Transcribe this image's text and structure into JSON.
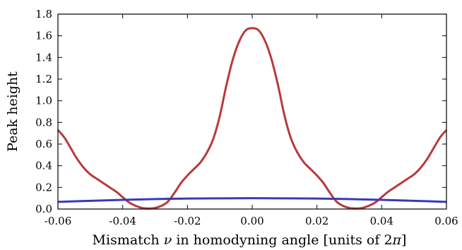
{
  "chart_data": {
    "type": "line",
    "title": "",
    "xlabel": {
      "prefix": "Mismatch ",
      "symbol": "ν",
      "suffix": " in homodyning angle [units of 2",
      "symbol2": "π",
      "end": "]"
    },
    "ylabel": "Peak height",
    "xlim": [
      -0.06,
      0.06
    ],
    "ylim": [
      0.0,
      1.8
    ],
    "xticks": [
      -0.06,
      -0.04,
      -0.02,
      0.0,
      0.02,
      0.04,
      0.06
    ],
    "xtick_labels": [
      "-0.06",
      "-0.04",
      "-0.02",
      "0.00",
      "0.02",
      "0.04",
      "0.06"
    ],
    "yticks": [
      0.0,
      0.2,
      0.4,
      0.6,
      0.8,
      1.0,
      1.2,
      1.4,
      1.6,
      1.8
    ],
    "ytick_labels": [
      "0.0",
      "0.2",
      "0.4",
      "0.6",
      "0.8",
      "1.0",
      "1.2",
      "1.4",
      "1.6",
      "1.8"
    ],
    "grid": false,
    "series": [
      {
        "color": "#b83a3a",
        "x": [
          -0.06,
          -0.058,
          -0.056,
          -0.054,
          -0.052,
          -0.05,
          -0.048,
          -0.046,
          -0.044,
          -0.042,
          -0.04,
          -0.038,
          -0.036,
          -0.034,
          -0.032,
          -0.03,
          -0.028,
          -0.026,
          -0.024,
          -0.022,
          -0.02,
          -0.018,
          -0.016,
          -0.014,
          -0.012,
          -0.01,
          -0.008,
          -0.006,
          -0.004,
          -0.002,
          0.0,
          0.002,
          0.004,
          0.006,
          0.008,
          0.01,
          0.012,
          0.014,
          0.016,
          0.018,
          0.02,
          0.022,
          0.024,
          0.026,
          0.028,
          0.03,
          0.032,
          0.034,
          0.036,
          0.038,
          0.04,
          0.042,
          0.044,
          0.046,
          0.048,
          0.05,
          0.052,
          0.054,
          0.056,
          0.058,
          0.06
        ],
        "y": [
          0.73,
          0.66,
          0.56,
          0.46,
          0.38,
          0.32,
          0.28,
          0.24,
          0.2,
          0.16,
          0.11,
          0.06,
          0.03,
          0.01,
          0.005,
          0.01,
          0.03,
          0.07,
          0.15,
          0.24,
          0.31,
          0.37,
          0.43,
          0.52,
          0.65,
          0.86,
          1.14,
          1.38,
          1.55,
          1.65,
          1.67,
          1.65,
          1.55,
          1.38,
          1.14,
          0.86,
          0.65,
          0.52,
          0.43,
          0.37,
          0.31,
          0.24,
          0.15,
          0.07,
          0.03,
          0.01,
          0.005,
          0.01,
          0.03,
          0.06,
          0.11,
          0.16,
          0.2,
          0.24,
          0.28,
          0.32,
          0.38,
          0.46,
          0.56,
          0.66,
          0.73
        ]
      },
      {
        "color": "#3a3ab8",
        "x": [
          -0.06,
          -0.05,
          -0.04,
          -0.03,
          -0.02,
          -0.01,
          0.0,
          0.01,
          0.02,
          0.03,
          0.04,
          0.05,
          0.06
        ],
        "y": [
          0.066,
          0.076,
          0.085,
          0.092,
          0.097,
          0.099,
          0.1,
          0.099,
          0.097,
          0.092,
          0.085,
          0.076,
          0.066
        ]
      }
    ]
  }
}
